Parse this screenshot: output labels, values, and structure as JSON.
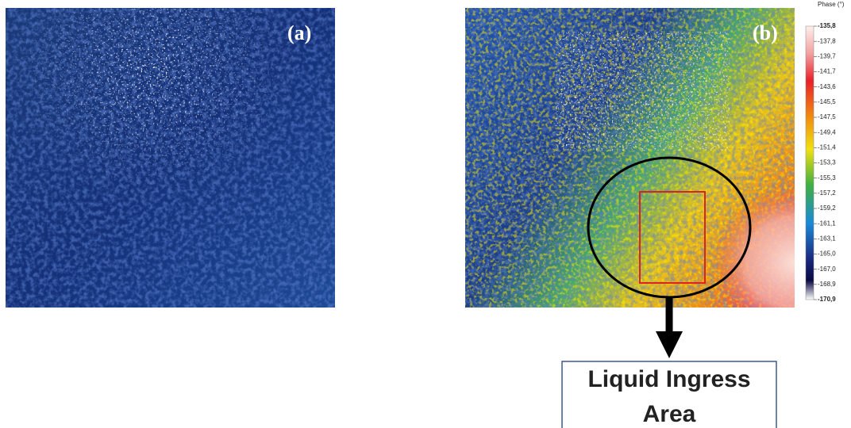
{
  "panels": [
    {
      "label": "(a)"
    },
    {
      "label": "(b)"
    }
  ],
  "colorbar": {
    "title": "Phase (°)",
    "labels": [
      "-135,8",
      "-137,8",
      "-139,7",
      "-141,7",
      "-143,6",
      "-145,5",
      "-147,5",
      "-149,4",
      "-151,4",
      "-153,3",
      "-155,3",
      "-157,2",
      "-159,2",
      "-161,1",
      "-163,1",
      "-165,0",
      "-167,0",
      "-168,9",
      "-170,9"
    ]
  },
  "callout": {
    "lines": [
      "Liquid Ingress",
      "Area"
    ]
  }
}
